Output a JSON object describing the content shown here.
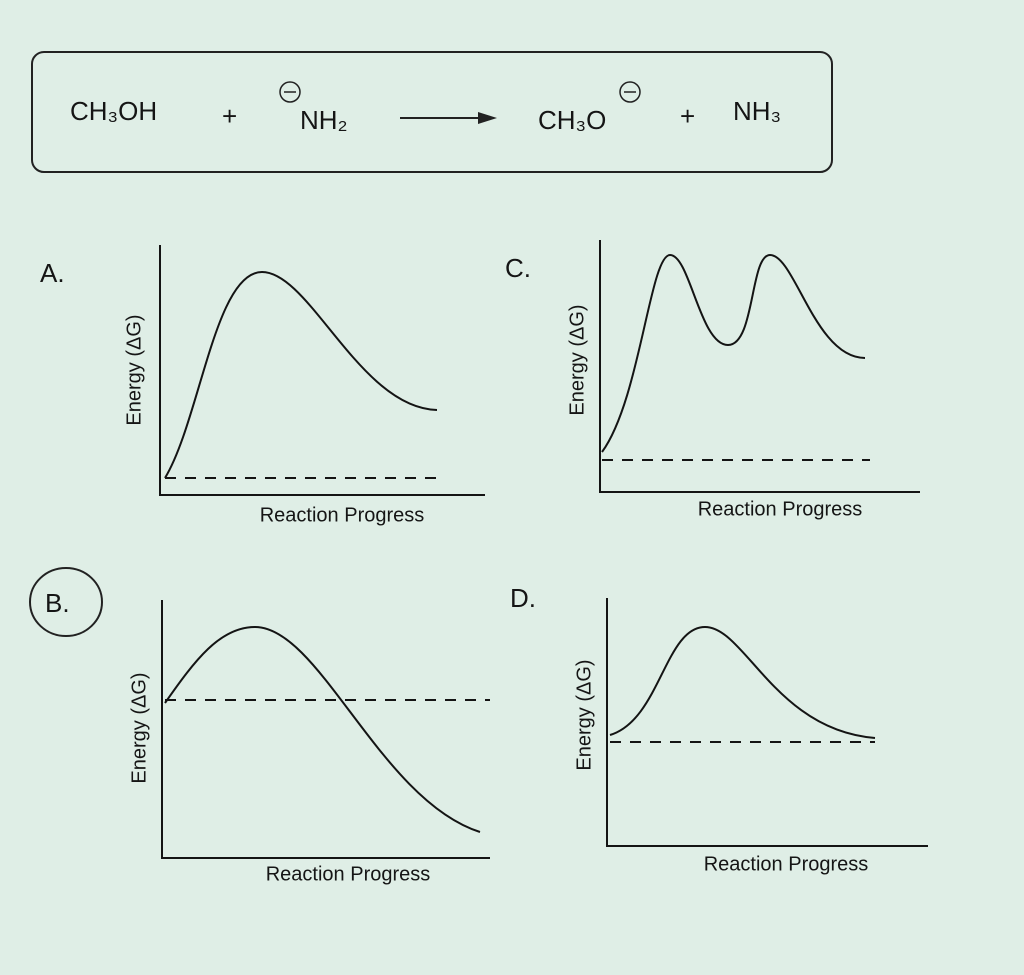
{
  "equation": {
    "reactant_1": "CH₃OH",
    "operator_1": "+",
    "reactant_2": "NH₂",
    "product_1": "CH₃O",
    "operator_2": "+",
    "product_2": "NH₃"
  },
  "panels": [
    {
      "label": "A.",
      "y_label": "Energy (ΔG)",
      "x_label": "Reaction Progress"
    },
    {
      "label": "C.",
      "y_label": "Energy (ΔG)",
      "x_label": "Reaction Progress"
    },
    {
      "label": "B.",
      "y_label": "Energy (ΔG)",
      "x_label": "Reaction Progress"
    },
    {
      "label": "D.",
      "y_label": "Energy (ΔG)",
      "x_label": "Reaction Progress"
    }
  ]
}
